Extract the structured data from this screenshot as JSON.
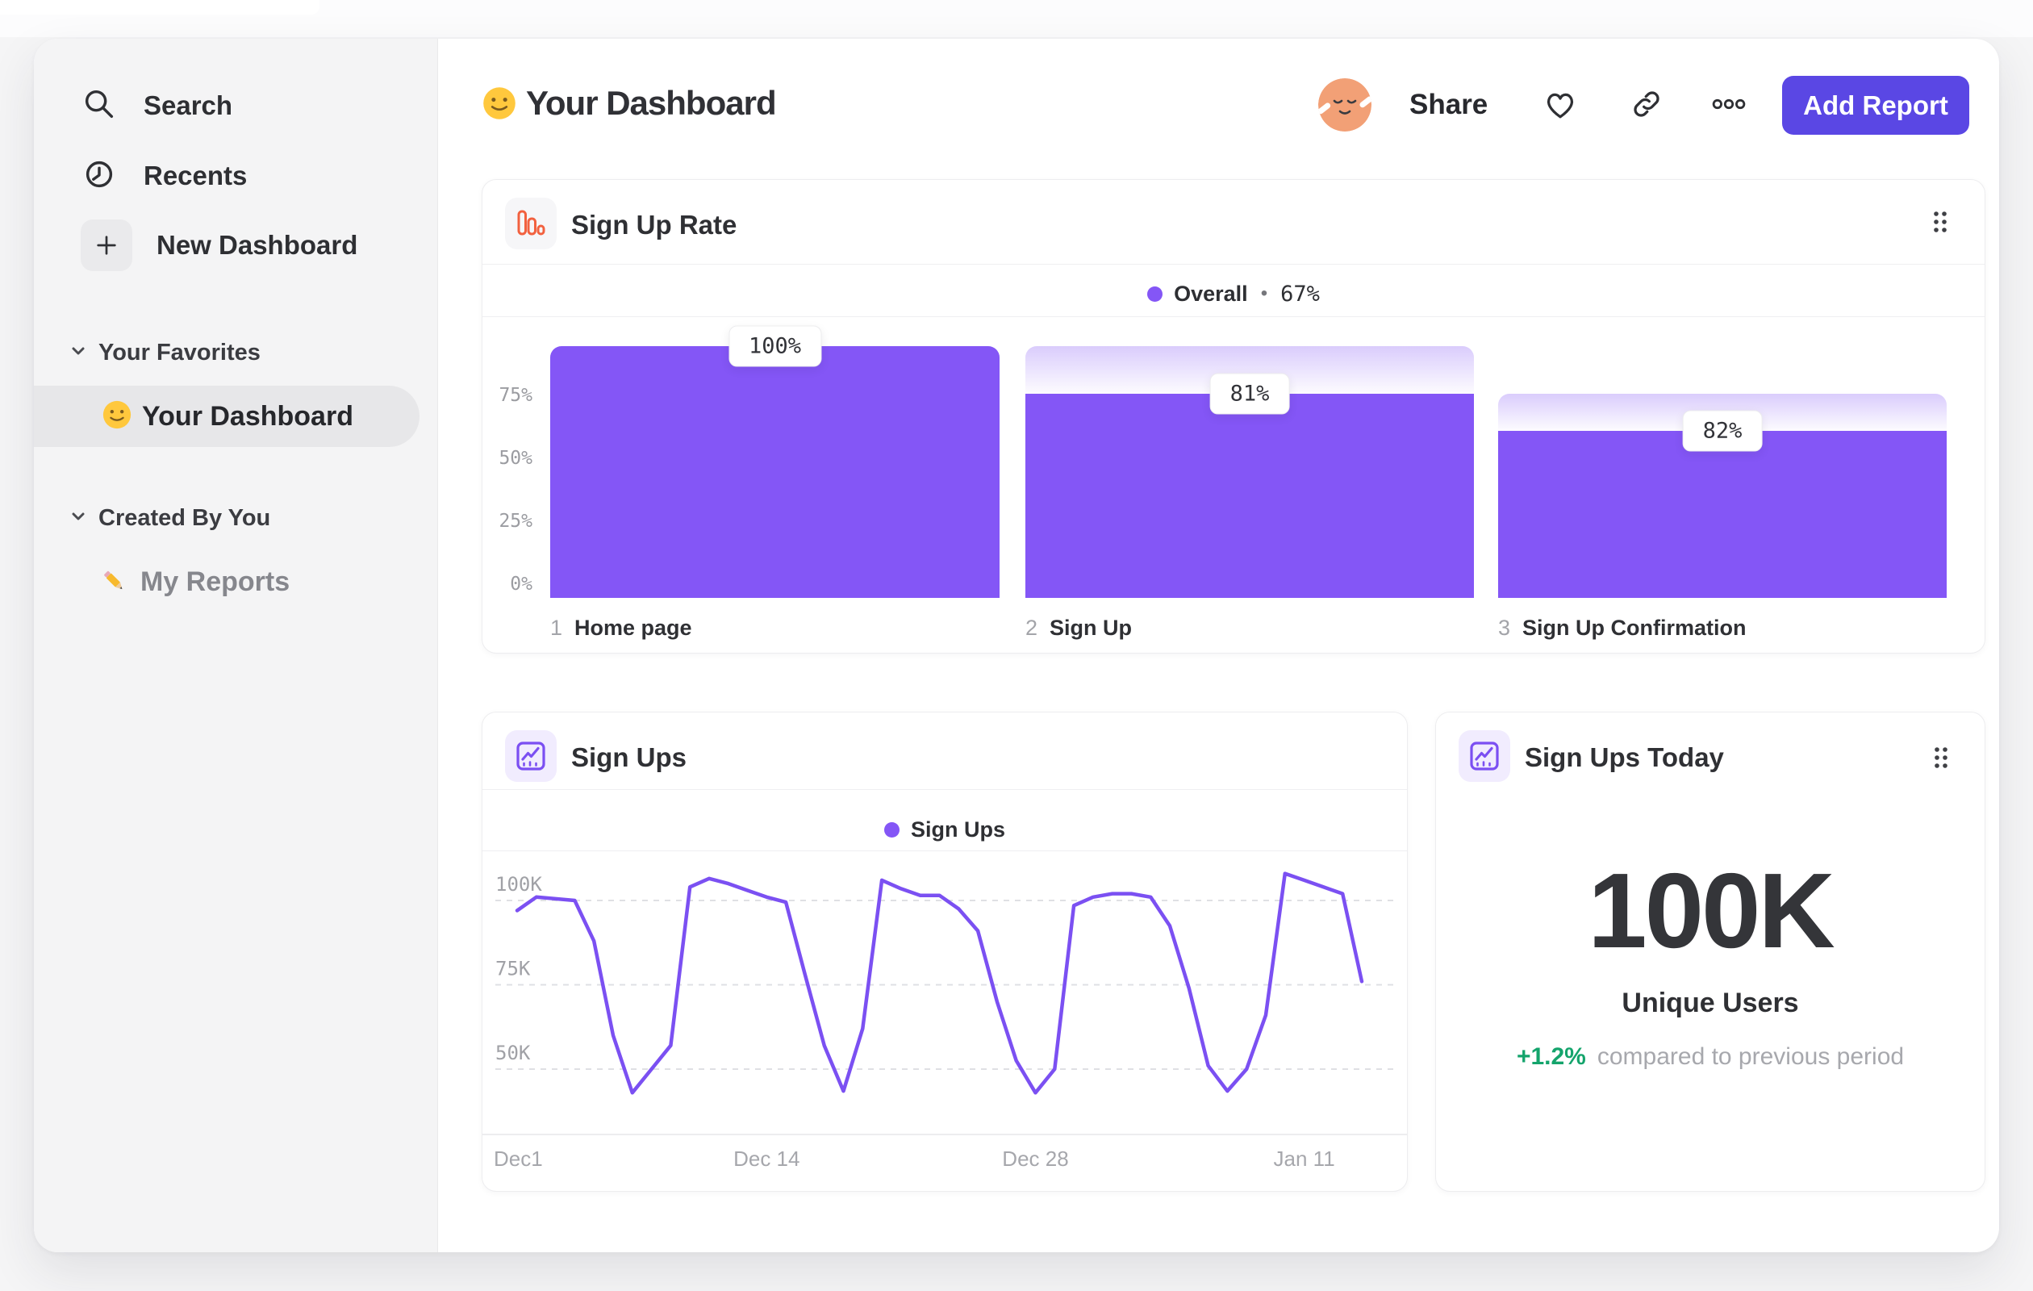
{
  "header": {
    "title": "Your Dashboard",
    "title_emoji": "slightly-smiling-face",
    "share_label": "Share",
    "add_report_label": "Add Report"
  },
  "sidebar": {
    "items": [
      {
        "label": "Search",
        "icon": "search-icon"
      },
      {
        "label": "Recents",
        "icon": "clock-icon"
      },
      {
        "label": "New Dashboard",
        "icon": "plus-icon"
      }
    ],
    "sections": [
      {
        "label": "Your Favorites",
        "items": [
          {
            "label": "Your Dashboard",
            "emoji": "slightly-smiling-face",
            "selected": true
          }
        ]
      },
      {
        "label": "Created By You",
        "items": [
          {
            "label": "My Reports",
            "emoji": "pencil",
            "selected": false
          }
        ]
      }
    ]
  },
  "cards": {
    "sign_up_rate": {
      "title": "Sign Up Rate",
      "legend_label": "Overall",
      "legend_separator": "•",
      "legend_value": "67%"
    },
    "sign_ups": {
      "title": "Sign Ups",
      "legend_label": "Sign Ups"
    },
    "sign_ups_today": {
      "title": "Sign Ups Today",
      "value": "100K",
      "metric_label": "Unique Users",
      "delta": "+1.2%",
      "comparison": "compared to previous period"
    }
  },
  "colors": {
    "accent_purple": "#8456F6",
    "line_purple": "#7B50F2",
    "button_indigo": "#5A47E4",
    "funnel_icon_orange": "#F2613F",
    "delta_green": "#14A46C"
  },
  "chart_data": [
    {
      "id": "sign_up_rate_funnel",
      "type": "bar",
      "title": "Sign Up Rate",
      "legend": [
        {
          "label": "Overall",
          "value": "67%"
        }
      ],
      "ylim": [
        0,
        100
      ],
      "yticks": [
        "0%",
        "25%",
        "50%",
        "75%"
      ],
      "steps": [
        {
          "index": "1",
          "label": "Home page",
          "conversion_from_previous_pct": 100,
          "overall_pct": 100,
          "badge": "100%"
        },
        {
          "index": "2",
          "label": "Sign Up",
          "conversion_from_previous_pct": 81,
          "overall_pct": 81,
          "badge": "81%"
        },
        {
          "index": "3",
          "label": "Sign Up Confirmation",
          "conversion_from_previous_pct": 82,
          "overall_pct": 66.4,
          "badge": "82%"
        }
      ]
    },
    {
      "id": "sign_ups_over_time",
      "type": "line",
      "title": "Sign Ups",
      "legend_position": "top-center",
      "grid": "dashed-horizontal",
      "x_unit": "day",
      "xticks": [
        {
          "label": "Dec1",
          "day": 0
        },
        {
          "label": "Dec 14",
          "day": 13
        },
        {
          "label": "Dec 28",
          "day": 27
        },
        {
          "label": "Jan 11",
          "day": 41
        }
      ],
      "yticks": [
        {
          "label": "50K",
          "value_thousands": 50
        },
        {
          "label": "75K",
          "value_thousands": 75
        },
        {
          "label": "100K",
          "value_thousands": 100
        }
      ],
      "ylim_thousands": [
        30,
        112
      ],
      "series": [
        {
          "name": "Sign Ups",
          "values_thousands": [
            97,
            101,
            100.5,
            100,
            88,
            60,
            43,
            50,
            57,
            104,
            106.5,
            105,
            103,
            101,
            99.5,
            78,
            57,
            43.5,
            62,
            106,
            103.5,
            101.5,
            101.5,
            97.5,
            91,
            70,
            52.5,
            43,
            50,
            98.5,
            101,
            102,
            102,
            101,
            92.5,
            74,
            51,
            43.5,
            50,
            66,
            108,
            106,
            104,
            102,
            76
          ]
        }
      ]
    },
    {
      "id": "sign_ups_today",
      "type": "big_number",
      "title": "Sign Ups Today",
      "value": "100K",
      "metric": "Unique Users",
      "delta_pct": 1.2,
      "delta_label": "+1.2%",
      "trend": "up",
      "comparison_label": "compared to previous period"
    }
  ]
}
